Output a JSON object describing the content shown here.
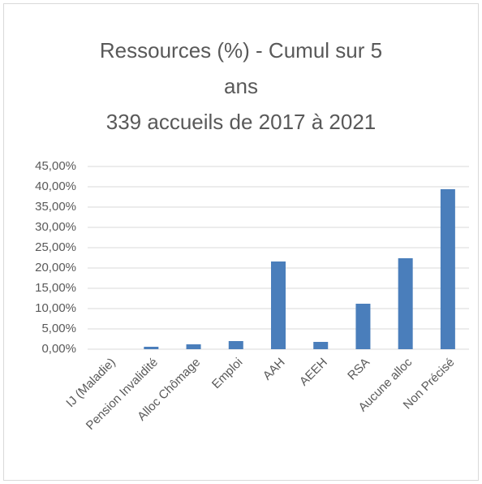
{
  "chart_data": {
    "type": "bar",
    "title": "Ressources (%) - Cumul sur 5 ans",
    "subtitle": "339 accueils de 2017 à 2021",
    "categories": [
      "IJ (Maladie)",
      "Pension Invalidité",
      "Alloc Chômage",
      "Emploi",
      "AAH",
      "AEEH",
      "RSA",
      "Aucune alloc",
      "Non Précisé"
    ],
    "values": [
      0,
      0.6,
      1.2,
      2.0,
      21.6,
      1.8,
      11.2,
      22.4,
      39.4
    ],
    "color": "#4a7ebb",
    "ylim": [
      0,
      45
    ],
    "yticks": [
      {
        "value": 0,
        "label": "0,00%"
      },
      {
        "value": 5,
        "label": "5,00%"
      },
      {
        "value": 10,
        "label": "10,00%"
      },
      {
        "value": 15,
        "label": "15,00%"
      },
      {
        "value": 20,
        "label": "20,00%"
      },
      {
        "value": 25,
        "label": "25,00%"
      },
      {
        "value": 30,
        "label": "30,00%"
      },
      {
        "value": 35,
        "label": "35,00%"
      },
      {
        "value": 40,
        "label": "40,00%"
      },
      {
        "value": 45,
        "label": "45,00%"
      }
    ],
    "grid": true
  }
}
